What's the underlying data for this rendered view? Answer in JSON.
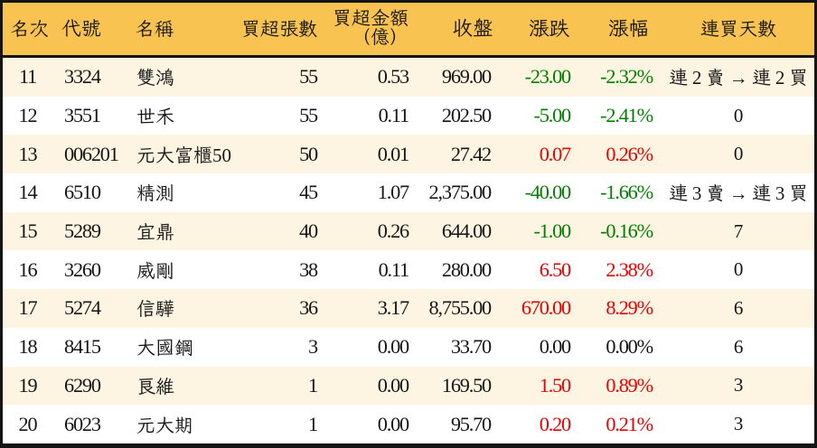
{
  "chart_data": {
    "type": "table",
    "title": "",
    "columns": [
      "名次",
      "代號",
      "名稱",
      "買超張數",
      "買超金額（億）",
      "收盤",
      "漲跌",
      "漲幅",
      "連買天數"
    ],
    "rows": [
      [
        "11",
        "3324",
        "雙鴻",
        "55",
        "0.53",
        "969.00",
        "-23.00",
        "-2.32%",
        "連 2 賣 → 連 2 買"
      ],
      [
        "12",
        "3551",
        "世禾",
        "55",
        "0.11",
        "202.50",
        "-5.00",
        "-2.41%",
        "0"
      ],
      [
        "13",
        "006201",
        "元大富櫃50",
        "50",
        "0.01",
        "27.42",
        "0.07",
        "0.26%",
        "0"
      ],
      [
        "14",
        "6510",
        "精測",
        "45",
        "1.07",
        "2,375.00",
        "-40.00",
        "-1.66%",
        "連 3 賣 → 連 3 買"
      ],
      [
        "15",
        "5289",
        "宜鼎",
        "40",
        "0.26",
        "644.00",
        "-1.00",
        "-0.16%",
        "7"
      ],
      [
        "16",
        "3260",
        "威剛",
        "38",
        "0.11",
        "280.00",
        "6.50",
        "2.38%",
        "0"
      ],
      [
        "17",
        "5274",
        "信驊",
        "36",
        "3.17",
        "8,755.00",
        "670.00",
        "8.29%",
        "6"
      ],
      [
        "18",
        "8415",
        "大國鋼",
        "3",
        "0.00",
        "33.70",
        "0.00",
        "0.00%",
        "6"
      ],
      [
        "19",
        "6290",
        "良維",
        "1",
        "0.00",
        "169.50",
        "1.50",
        "0.89%",
        "3"
      ],
      [
        "20",
        "6023",
        "元大期",
        "1",
        "0.00",
        "95.70",
        "0.20",
        "0.21%",
        "3"
      ]
    ],
    "trend_per_row": [
      "down",
      "down",
      "up",
      "down",
      "down",
      "up",
      "up",
      "flat",
      "up",
      "up"
    ],
    "layout_hints": {
      "header_fill": "orange",
      "zebra_striping": true,
      "up_color_applies_to": [
        "漲跌",
        "漲幅"
      ],
      "alignment": [
        "center",
        "left",
        "left",
        "right",
        "right",
        "right",
        "right",
        "right",
        "center"
      ]
    }
  },
  "colors": {
    "header-bg": "#f9c352",
    "row-alt-bg": "#fdf5e2",
    "row-bg": "#ffffff",
    "border": "#141414",
    "text": "#151515",
    "up": "#ea0000",
    "down": "#008000",
    "flat": "#151515"
  },
  "table": {
    "columns": [
      {
        "id": "rank",
        "label": "名次",
        "align": "left"
      },
      {
        "id": "code",
        "label": "代號",
        "align": "left"
      },
      {
        "id": "name",
        "label": "名稱",
        "align": "left"
      },
      {
        "id": "volume",
        "label": "買超張數",
        "align": "right"
      },
      {
        "id": "amount",
        "label": "買超金額",
        "label_line2": "（億）",
        "align": "right"
      },
      {
        "id": "close",
        "label": "收盤",
        "align": "right"
      },
      {
        "id": "change",
        "label": "漲跌",
        "align": "right"
      },
      {
        "id": "pct",
        "label": "漲幅",
        "align": "right"
      },
      {
        "id": "days",
        "label": "連買天數",
        "align": "center"
      }
    ],
    "rows": [
      {
        "rank": "11",
        "code": "3324",
        "name": "雙鴻",
        "volume": "55",
        "amount": "0.53",
        "close": "969.00",
        "change": "-23.00",
        "pct": "-2.32%",
        "days": "連 2 賣 → 連 2 買",
        "trend": "down"
      },
      {
        "rank": "12",
        "code": "3551",
        "name": "世禾",
        "volume": "55",
        "amount": "0.11",
        "close": "202.50",
        "change": "-5.00",
        "pct": "-2.41%",
        "days": "0",
        "trend": "down"
      },
      {
        "rank": "13",
        "code": "006201",
        "name": "元大富櫃50",
        "volume": "50",
        "amount": "0.01",
        "close": "27.42",
        "change": "0.07",
        "pct": "0.26%",
        "days": "0",
        "trend": "up"
      },
      {
        "rank": "14",
        "code": "6510",
        "name": "精測",
        "volume": "45",
        "amount": "1.07",
        "close": "2,375.00",
        "change": "-40.00",
        "pct": "-1.66%",
        "days": "連 3 賣 → 連 3 買",
        "trend": "down"
      },
      {
        "rank": "15",
        "code": "5289",
        "name": "宜鼎",
        "volume": "40",
        "amount": "0.26",
        "close": "644.00",
        "change": "-1.00",
        "pct": "-0.16%",
        "days": "7",
        "trend": "down"
      },
      {
        "rank": "16",
        "code": "3260",
        "name": "威剛",
        "volume": "38",
        "amount": "0.11",
        "close": "280.00",
        "change": "6.50",
        "pct": "2.38%",
        "days": "0",
        "trend": "up"
      },
      {
        "rank": "17",
        "code": "5274",
        "name": "信驊",
        "volume": "36",
        "amount": "3.17",
        "close": "8,755.00",
        "change": "670.00",
        "pct": "8.29%",
        "days": "6",
        "trend": "up"
      },
      {
        "rank": "18",
        "code": "8415",
        "name": "大國鋼",
        "volume": "3",
        "amount": "0.00",
        "close": "33.70",
        "change": "0.00",
        "pct": "0.00%",
        "days": "6",
        "trend": "flat"
      },
      {
        "rank": "19",
        "code": "6290",
        "name": "良維",
        "volume": "1",
        "amount": "0.00",
        "close": "169.50",
        "change": "1.50",
        "pct": "0.89%",
        "days": "3",
        "trend": "up"
      },
      {
        "rank": "20",
        "code": "6023",
        "name": "元大期",
        "volume": "1",
        "amount": "0.00",
        "close": "95.70",
        "change": "0.20",
        "pct": "0.21%",
        "days": "3",
        "trend": "up"
      }
    ]
  }
}
